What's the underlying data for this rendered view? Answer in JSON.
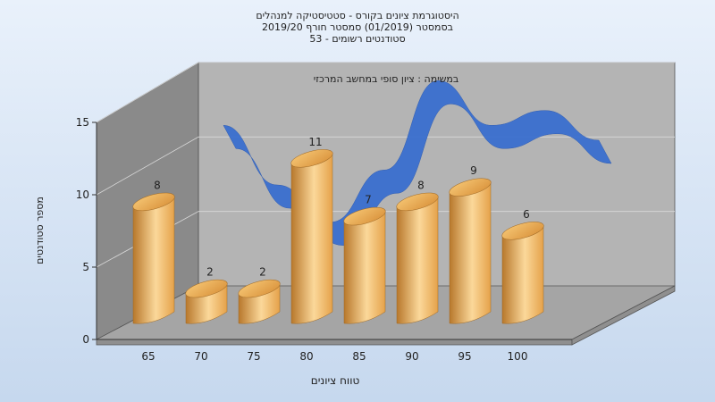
{
  "colors": {
    "bar_light": "#fbd89a",
    "bar_mid": "#e5a24a",
    "bar_dark": "#b8782c",
    "ribbon": "#3a6fcf",
    "wall_back": "#b4b4b4",
    "wall_side": "#8a8a8a",
    "floor": "#a5a5a5"
  },
  "chart_data": {
    "type": "bar",
    "title_lines": [
      "היסטוגרמת ציונים בקורס - סטטיסטיקה למנהלים",
      "בסמסטר  (01/2019)  סמסטר חורף 2019/20",
      "סטודנטים רשומים - 53"
    ],
    "annotation": "במשימה : ציון סופי במחשב המרכזי",
    "xlabel": "טווח ציונים",
    "ylabel": "מספר סטודנטים",
    "categories": [
      "65",
      "70",
      "75",
      "80",
      "85",
      "90",
      "95",
      "100"
    ],
    "values": [
      8,
      2,
      2,
      11,
      7,
      8,
      9,
      6
    ],
    "ylim": [
      0,
      15
    ],
    "yticks": [
      "0",
      "5",
      "10",
      "15"
    ],
    "curve_values": [
      10,
      6,
      3.5,
      7,
      13,
      10,
      11,
      9
    ],
    "grid": true,
    "legend": "none"
  }
}
